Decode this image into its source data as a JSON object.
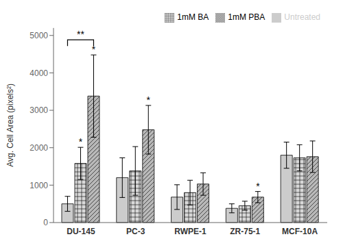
{
  "chart_data": {
    "type": "bar",
    "categories": [
      "DU-145",
      "PC-3",
      "RWPE-1",
      "ZR-75-1",
      "MCF-10A"
    ],
    "series": [
      {
        "name": "Untreated",
        "color": "#cccccc",
        "values": [
          500,
          1200,
          680,
          380,
          1800
        ],
        "errors": [
          200,
          530,
          330,
          120,
          350
        ]
      },
      {
        "name": "1mM BA",
        "color": "#d8d8d8",
        "values": [
          1580,
          1380,
          800,
          450,
          1730
        ],
        "errors": [
          430,
          650,
          330,
          120,
          350
        ]
      },
      {
        "name": "1mM PBA",
        "color": "#b8b8b8",
        "values": [
          3380,
          2480,
          1030,
          680,
          1760
        ],
        "errors": [
          1100,
          650,
          300,
          150,
          420
        ]
      }
    ],
    "ylabel": "Avg. Cell Area (pixels²)",
    "ylim": [
      0,
      5200
    ],
    "yticks": [
      0,
      1000,
      2000,
      3000,
      4000,
      5000
    ],
    "grid": false,
    "legend": "upper right",
    "annotations": [
      {
        "category": "DU-145",
        "series": "1mM BA",
        "text": "*"
      },
      {
        "category": "DU-145",
        "series": "1mM PBA",
        "text": "*"
      },
      {
        "category": "DU-145",
        "from": "Untreated",
        "to": "1mM PBA",
        "text": "**"
      },
      {
        "category": "PC-3",
        "series": "1mM PBA",
        "text": "*"
      },
      {
        "category": "ZR-75-1",
        "series": "1mM PBA",
        "text": "*"
      }
    ]
  }
}
